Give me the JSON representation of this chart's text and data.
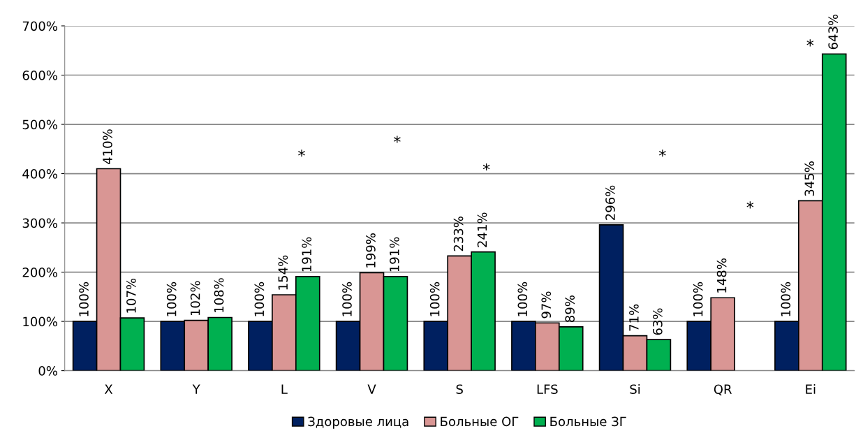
{
  "chart_data": {
    "type": "bar",
    "categories": [
      "X",
      "Y",
      "L",
      "V",
      "S",
      "LFS",
      "Si",
      "QR",
      "Ei"
    ],
    "series": [
      {
        "name": "Здоровые лица",
        "color": "#002060",
        "values": [
          100,
          100,
          100,
          100,
          100,
          100,
          296,
          100,
          100
        ],
        "value_labels": [
          "100%",
          "100%",
          "100%",
          "100%",
          "100%",
          "100%",
          "296%",
          "100%",
          "100%"
        ]
      },
      {
        "name": "Больные ОГ",
        "color": "#d99694",
        "values": [
          410,
          102,
          154,
          199,
          233,
          97,
          71,
          148,
          345
        ],
        "value_labels": [
          "410%",
          "102%",
          "154%",
          "199%",
          "233%",
          "97%",
          "71%",
          "148%",
          "345%"
        ]
      },
      {
        "name": "Больные ЗГ",
        "color": "#00b050",
        "values": [
          107,
          108,
          191,
          191,
          241,
          89,
          63,
          null,
          643
        ],
        "value_labels": [
          "107%",
          "108%",
          "191%",
          "191%",
          "241%",
          "89%",
          "63%",
          null,
          "643%"
        ]
      }
    ],
    "ylim": [
      0,
      700
    ],
    "yticks": [
      {
        "value": 0,
        "label": "0%"
      },
      {
        "value": 100,
        "label": "100%"
      },
      {
        "value": 200,
        "label": "200%"
      },
      {
        "value": 300,
        "label": "300%"
      },
      {
        "value": 400,
        "label": "400%"
      },
      {
        "value": 500,
        "label": "500%"
      },
      {
        "value": 600,
        "label": "600%"
      },
      {
        "value": 700,
        "label": "700%"
      }
    ],
    "grid": "y",
    "legend": "bottom",
    "annotations": [
      "*",
      "*",
      "*",
      "*",
      "*",
      "*"
    ]
  }
}
